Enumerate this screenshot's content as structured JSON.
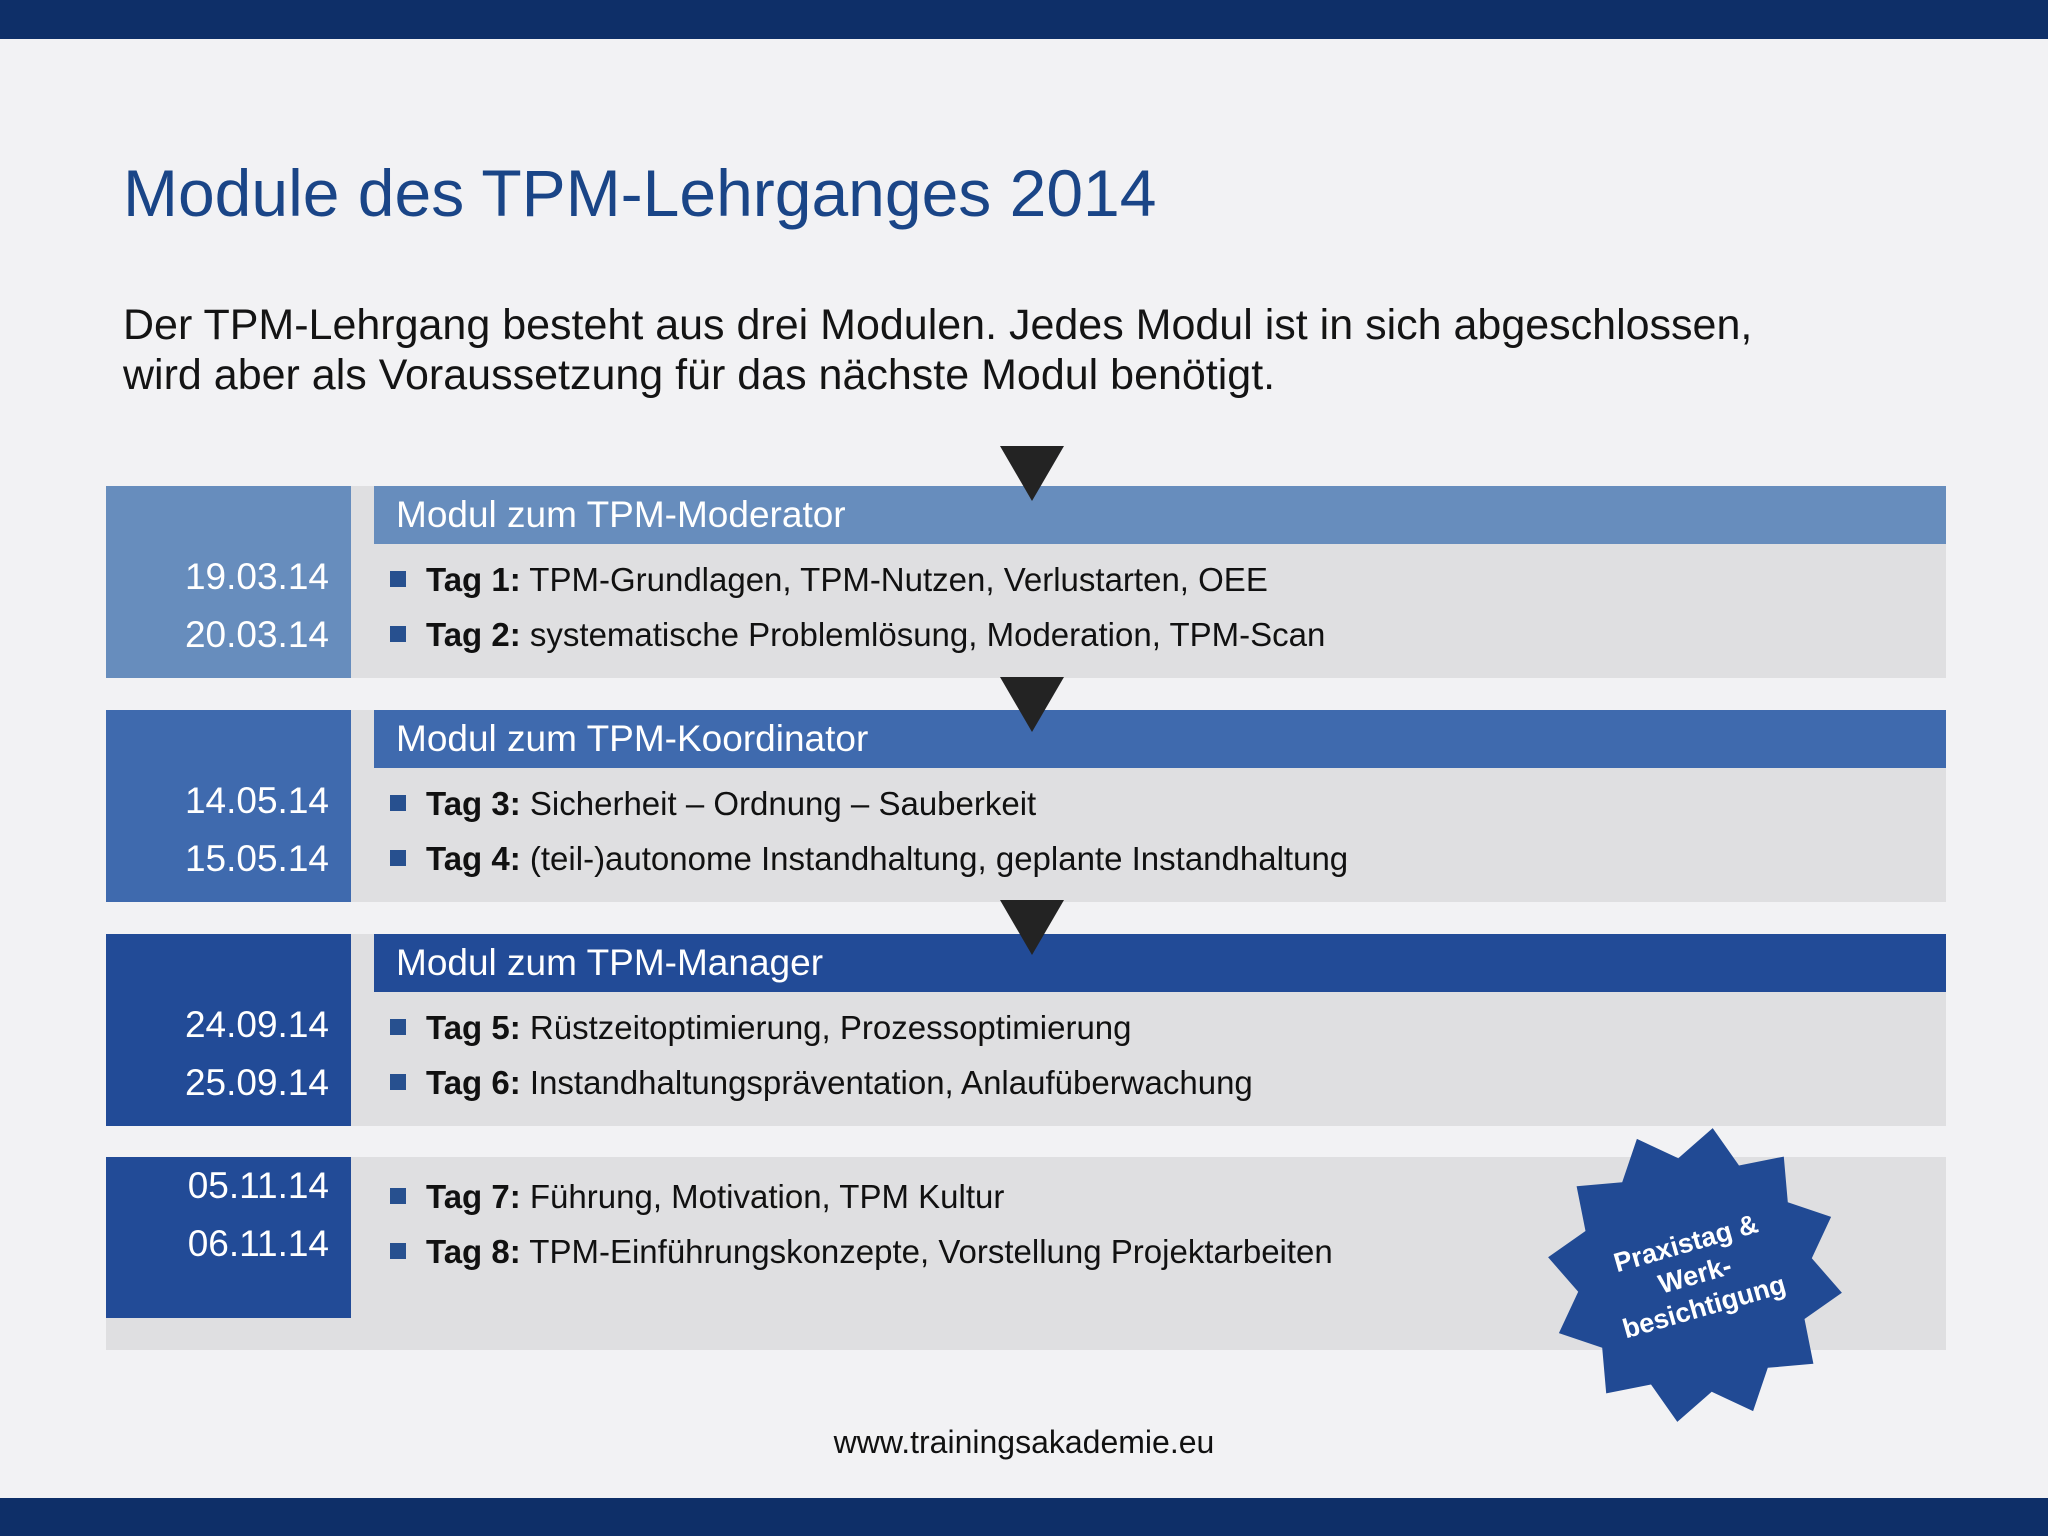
{
  "title": "Module des TPM-Lehrganges 2014",
  "intro": {
    "line1": "Der TPM-Lehrgang besteht aus drei Modulen. Jedes Modul ist in sich abgeschlossen,",
    "line2": "wird aber als Voraussetzung für das nächste Modul benötigt."
  },
  "modules": [
    {
      "header": "Modul zum TPM-Moderator",
      "dates": [
        "19.03.14",
        "20.03.14"
      ],
      "items": [
        {
          "day": "Tag 1:",
          "text": " TPM-Grundlagen, TPM-Nutzen, Verlustarten, OEE"
        },
        {
          "day": "Tag 2:",
          "text": " systematische Problemlösung, Moderation, TPM-Scan"
        }
      ]
    },
    {
      "header": "Modul zum TPM-Koordinator",
      "dates": [
        "14.05.14",
        "15.05.14"
      ],
      "items": [
        {
          "day": "Tag 3:",
          "text": " Sicherheit – Ordnung – Sauberkeit"
        },
        {
          "day": "Tag 4:",
          "text": " (teil-)autonome Instandhaltung, geplante Instandhaltung"
        }
      ]
    },
    {
      "header": "Modul zum TPM-Manager",
      "dates": [
        "24.09.14",
        "25.09.14"
      ],
      "items": [
        {
          "day": "Tag 5:",
          "text": " Rüstzeitoptimierung, Prozessoptimierung"
        },
        {
          "day": "Tag 6:",
          "text": " Instandhaltungspräventation, Anlaufüberwachung"
        }
      ]
    },
    {
      "dates": [
        "05.11.14",
        "06.11.14"
      ],
      "items": [
        {
          "day": "Tag 7:",
          "text": " Führung, Motivation, TPM Kultur"
        },
        {
          "day": "Tag 8:",
          "text": " TPM-Einführungskonzepte, Vorstellung Projektarbeiten"
        }
      ]
    }
  ],
  "badge": {
    "line1": "Praxistag &",
    "line2": "Werk-",
    "line3": "besichtigung"
  },
  "footer": "www.trainingsakademie.eu",
  "colors": {
    "top_bar": "#0e2f68",
    "module1": "#678dbd",
    "module2": "#3f6aae",
    "module3": "#224b97",
    "module4": "#224b97",
    "badge": "#214a94",
    "arrow": "#232323"
  }
}
